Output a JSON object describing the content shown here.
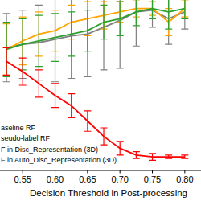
{
  "chart_data": {
    "type": "line",
    "x_label": "Decision Threshold in Post-processing",
    "x": [
      0.525,
      0.55,
      0.575,
      0.6,
      0.625,
      0.65,
      0.675,
      0.7,
      0.725,
      0.75,
      0.775,
      0.8
    ],
    "xlim": [
      0.515,
      0.825
    ],
    "xticks": [
      0.55,
      {
        "value": 0.6,
        "label": "0.60"
      },
      0.65,
      {
        "value": 0.7,
        "label": "0.70"
      },
      0.75,
      {
        "value": 0.8,
        "label": "0.80"
      }
    ],
    "ylim": [
      0,
      1
    ],
    "tick_labels": "x",
    "legend": "lower left",
    "series": [
      {
        "name": "aseline RF",
        "color": "#7f7f7f",
        "values": [
          0.72,
          0.74,
          0.75,
          0.77,
          0.79,
          0.8,
          0.84,
          0.88,
          0.93,
          0.94,
          0.89,
          0.93
        ],
        "errors": [
          0.2,
          0.2,
          0.22,
          0.25,
          0.25,
          0.25,
          0.25,
          0.28,
          0.2,
          0.1,
          0.15,
          0.1
        ]
      },
      {
        "name": "seudo-label RF",
        "color": "#ffa500",
        "values": [
          0.71,
          0.76,
          0.8,
          0.82,
          0.87,
          0.89,
          0.91,
          0.93,
          0.95,
          0.95,
          0.87,
          0.95
        ],
        "errors": [
          0.15,
          0.14,
          0.13,
          0.12,
          0.1,
          0.1,
          0.08,
          0.06,
          0.05,
          0.04,
          0.08,
          0.05
        ]
      },
      {
        "name": "F in Disc_Representation (3D)",
        "color": "#2ca02c",
        "values": [
          0.71,
          0.74,
          0.76,
          0.78,
          0.8,
          0.82,
          0.87,
          0.89,
          0.93,
          0.95,
          0.93,
          0.95
        ],
        "errors": [
          0.16,
          0.15,
          0.15,
          0.14,
          0.13,
          0.12,
          0.1,
          0.1,
          0.08,
          0.06,
          0.1,
          0.06
        ]
      },
      {
        "name": "F in Auto_Disc_Representation (3D)",
        "color": "#ff0000",
        "values": [
          0.64,
          0.58,
          0.51,
          0.44,
          0.38,
          0.29,
          0.2,
          0.13,
          0.09,
          0.08,
          0.08,
          0.08
        ],
        "errors": [
          0.08,
          0.08,
          0.08,
          0.07,
          0.07,
          0.06,
          0.05,
          0.04,
          0.02,
          0.02,
          0.01,
          0.01
        ]
      }
    ]
  }
}
